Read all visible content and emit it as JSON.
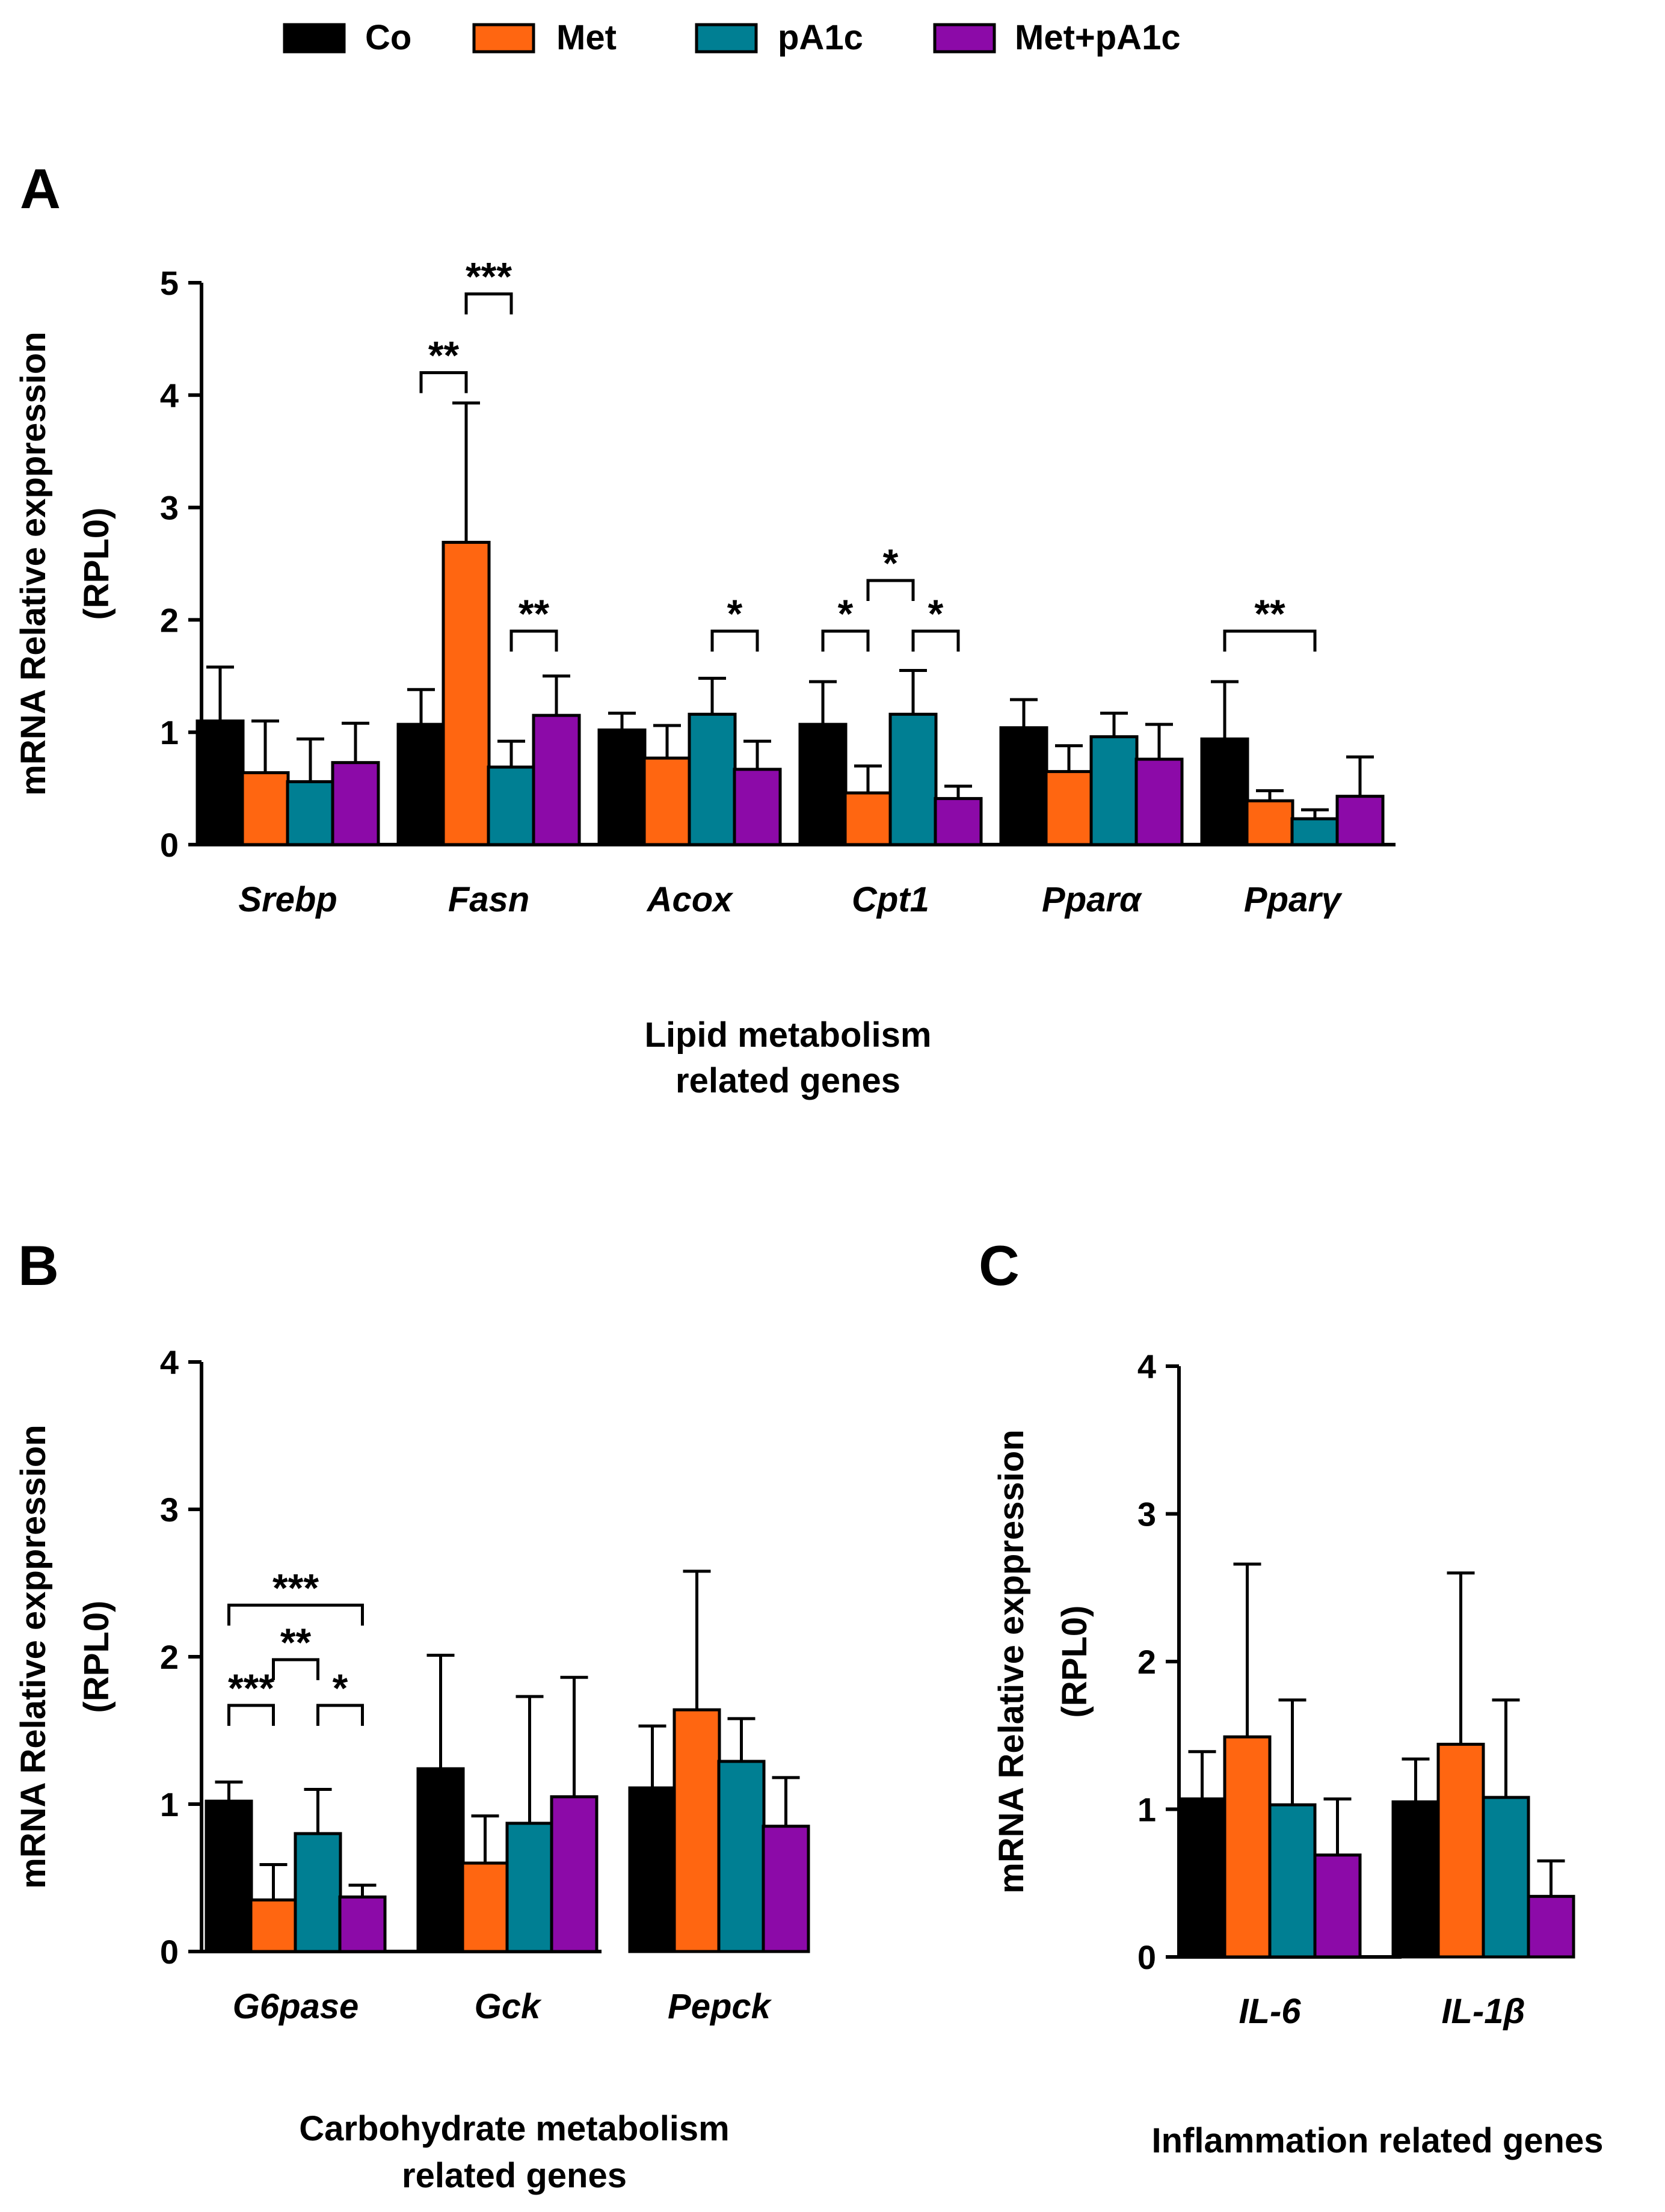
{
  "legend": [
    {
      "name": "Co",
      "color": "#000000"
    },
    {
      "name": "Met",
      "color": "#ff6611"
    },
    {
      "name": "pA1c",
      "color": "#007f93"
    },
    {
      "name": "Met+pA1c",
      "color": "#8c0aa8"
    }
  ],
  "chart_data": [
    {
      "type": "bar",
      "panel": "A",
      "ylabel": [
        "mRNA Relative exppression",
        "(RPL0)"
      ],
      "xlabel": [
        "Lipid metabolism",
        "related genes"
      ],
      "ylim": [
        0,
        5
      ],
      "yticks": [
        "0",
        "1",
        "2",
        "3",
        "4",
        "5"
      ],
      "categories": [
        "Srebp",
        "Fasn",
        "Acox",
        "Cpt1",
        "Pparα",
        "Pparγ"
      ],
      "series": [
        {
          "name": "Co",
          "values": [
            1.1,
            1.07,
            1.02,
            1.07,
            1.04,
            0.94
          ],
          "errors": [
            0.48,
            0.31,
            0.15,
            0.38,
            0.25,
            0.51
          ]
        },
        {
          "name": "Met",
          "values": [
            0.64,
            2.69,
            0.77,
            0.46,
            0.65,
            0.39
          ],
          "errors": [
            0.46,
            1.24,
            0.29,
            0.24,
            0.23,
            0.09
          ]
        },
        {
          "name": "pA1c",
          "values": [
            0.56,
            0.69,
            1.16,
            1.16,
            0.96,
            0.23
          ],
          "errors": [
            0.38,
            0.23,
            0.32,
            0.39,
            0.21,
            0.08
          ]
        },
        {
          "name": "Met+pA1c",
          "values": [
            0.73,
            1.15,
            0.67,
            0.41,
            0.76,
            0.43
          ],
          "errors": [
            0.35,
            0.35,
            0.25,
            0.11,
            0.31,
            0.35
          ]
        }
      ],
      "significance": [
        {
          "category": 1,
          "from": 0,
          "to": 1,
          "y": 4.2,
          "label": "**"
        },
        {
          "category": 1,
          "from": 1,
          "to": 2,
          "y": 4.9,
          "label": "***"
        },
        {
          "category": 1,
          "from": 2,
          "to": 3,
          "y": 1.9,
          "label": "**"
        },
        {
          "category": 2,
          "from": 2,
          "to": 3,
          "y": 1.9,
          "label": "*"
        },
        {
          "category": 3,
          "from": 0,
          "to": 1,
          "y": 1.9,
          "label": "*"
        },
        {
          "category": 3,
          "from": 1,
          "to": 2,
          "y": 2.35,
          "label": "*"
        },
        {
          "category": 3,
          "from": 2,
          "to": 3,
          "y": 1.9,
          "label": "*"
        },
        {
          "category": 5,
          "from": 0,
          "to": 2,
          "y": 1.9,
          "label": "**"
        }
      ]
    },
    {
      "type": "bar",
      "panel": "B",
      "ylabel": [
        "mRNA Relative exppression",
        "(RPL0)"
      ],
      "xlabel": [
        "Carbohydrate metabolism",
        "related genes"
      ],
      "ylim": [
        0,
        4
      ],
      "yticks": [
        "0",
        "1",
        "2",
        "3",
        "4"
      ],
      "categories": [
        "G6pase",
        "Gck",
        "Pepck"
      ],
      "series": [
        {
          "name": "Co",
          "values": [
            1.02,
            1.24,
            1.11
          ],
          "errors": [
            0.13,
            0.77,
            0.42
          ]
        },
        {
          "name": "Met",
          "values": [
            0.35,
            0.6,
            1.64
          ],
          "errors": [
            0.24,
            0.32,
            0.94
          ]
        },
        {
          "name": "pA1c",
          "values": [
            0.8,
            0.87,
            1.29
          ],
          "errors": [
            0.3,
            0.86,
            0.29
          ]
        },
        {
          "name": "Met+pA1c",
          "values": [
            0.37,
            1.05,
            0.85
          ],
          "errors": [
            0.08,
            0.81,
            0.33
          ]
        }
      ],
      "significance": [
        {
          "category": 0,
          "from": 0,
          "to": 1,
          "y": 1.67,
          "label": "***"
        },
        {
          "category": 0,
          "from": 2,
          "to": 3,
          "y": 1.67,
          "label": "*"
        },
        {
          "category": 0,
          "from": 1,
          "to": 2,
          "y": 1.98,
          "label": "**"
        },
        {
          "category": 0,
          "from": 0,
          "to": 3,
          "y": 2.35,
          "label": "***"
        }
      ]
    },
    {
      "type": "bar",
      "panel": "C",
      "ylabel": [
        "mRNA Relative exppression",
        "(RPL0)"
      ],
      "xlabel": [
        "Inflammation related genes"
      ],
      "ylim": [
        0,
        4
      ],
      "yticks": [
        "0",
        "1",
        "2",
        "3",
        "4"
      ],
      "categories": [
        "IL-6",
        "IL-1β"
      ],
      "series": [
        {
          "name": "Co",
          "values": [
            1.07,
            1.05
          ],
          "errors": [
            0.32,
            0.29
          ]
        },
        {
          "name": "Met",
          "values": [
            1.49,
            1.44
          ],
          "errors": [
            1.17,
            1.16
          ]
        },
        {
          "name": "pA1c",
          "values": [
            1.03,
            1.08
          ],
          "errors": [
            0.71,
            0.66
          ]
        },
        {
          "name": "Met+pA1c",
          "values": [
            0.69,
            0.41
          ],
          "errors": [
            0.38,
            0.24
          ]
        }
      ],
      "significance": []
    }
  ]
}
